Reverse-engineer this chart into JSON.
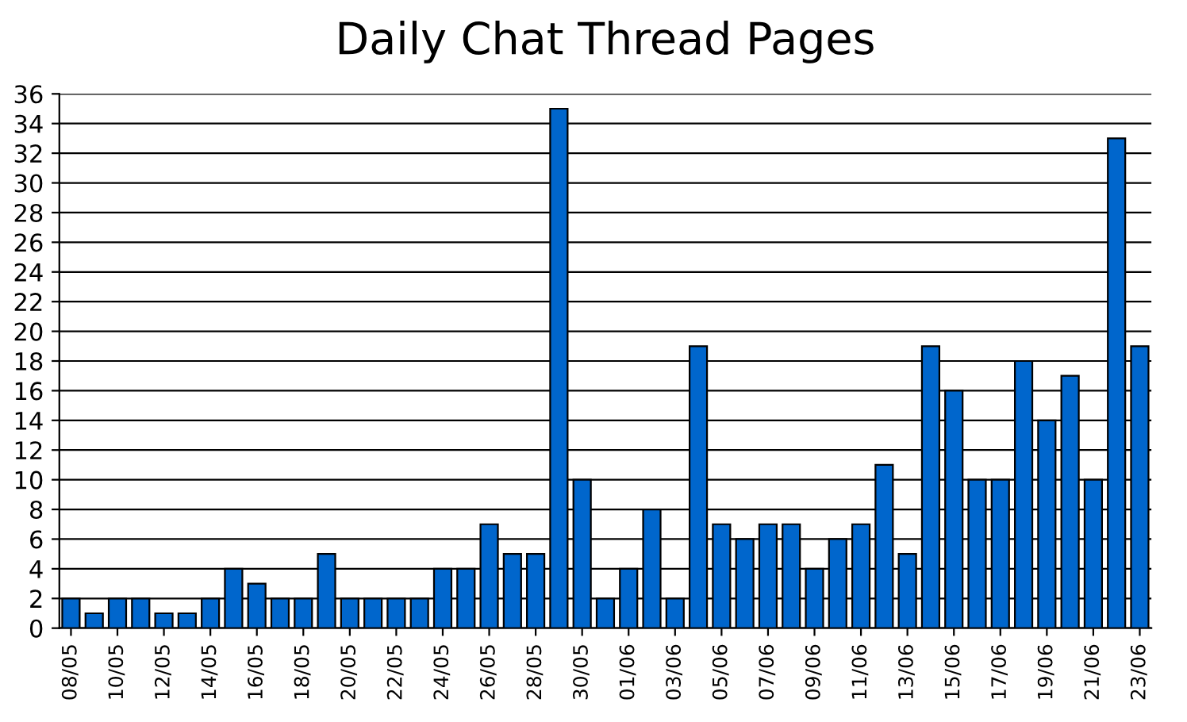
{
  "chart_data": {
    "type": "bar",
    "title": "Daily Chat Thread Pages",
    "categories": [
      "08/05",
      null,
      "10/05",
      null,
      "12/05",
      null,
      "14/05",
      null,
      "16/05",
      null,
      "18/05",
      null,
      "20/05",
      null,
      "22/05",
      null,
      "24/05",
      null,
      "26/05",
      null,
      "28/05",
      null,
      "30/05",
      null,
      "01/06",
      null,
      "03/06",
      null,
      "05/06",
      null,
      "07/06",
      null,
      "09/06",
      null,
      "11/06",
      null,
      "13/06",
      null,
      "15/06",
      null,
      "17/06",
      null,
      "19/06",
      null,
      "21/06",
      null,
      "23/06"
    ],
    "values": [
      2,
      1,
      2,
      2,
      1,
      1,
      2,
      4,
      3,
      2,
      2,
      5,
      2,
      2,
      2,
      2,
      4,
      4,
      7,
      5,
      5,
      35,
      10,
      2,
      4,
      8,
      2,
      19,
      7,
      6,
      7,
      7,
      4,
      6,
      7,
      11,
      5,
      19,
      16,
      10,
      10,
      18,
      14,
      17,
      10,
      33,
      19
    ],
    "color": "#0066cc",
    "ylim": [
      0,
      36
    ],
    "yticks": [
      0,
      2,
      4,
      6,
      8,
      10,
      12,
      14,
      16,
      18,
      20,
      22,
      24,
      26,
      28,
      30,
      32,
      34,
      36
    ],
    "grid": "y"
  }
}
